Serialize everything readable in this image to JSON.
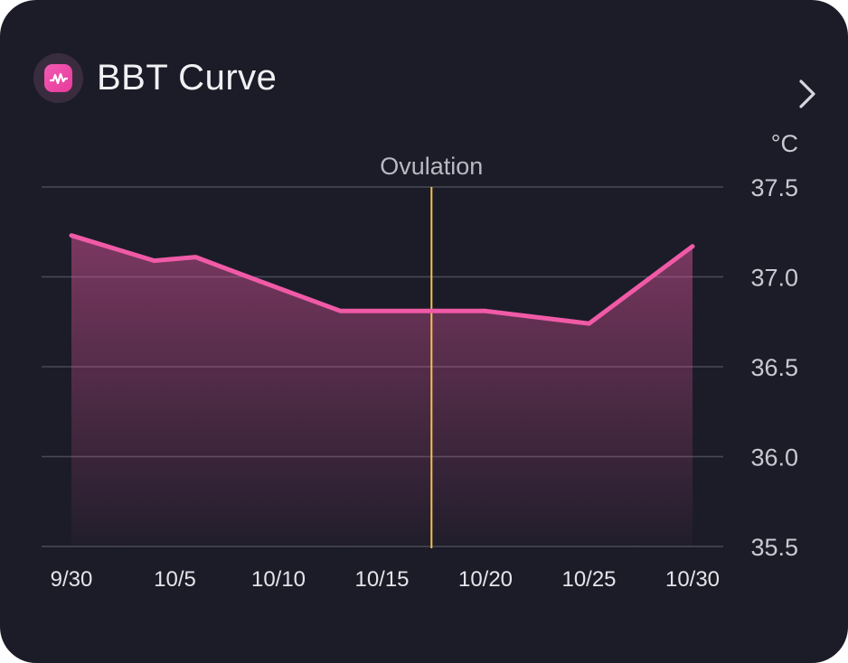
{
  "card": {
    "title": "BBT Curve",
    "icon": "wave-chart-icon",
    "more_icon": "chevron-right-icon"
  },
  "colors": {
    "background": "#1c1c28",
    "line": "#f05aa6",
    "ovulation": "#f2c14e",
    "grid": "#4a4a56",
    "text": "#c9c9d2"
  },
  "chart_data": {
    "type": "area",
    "unit": "°C",
    "x_tick_labels": [
      "9/30",
      "10/5",
      "10/10",
      "10/15",
      "10/20",
      "10/25",
      "10/30"
    ],
    "y_tick_labels": [
      "37.5",
      "37.0",
      "36.5",
      "36.0",
      "35.5"
    ],
    "ylim": [
      35.5,
      37.5
    ],
    "xlim_days_from": "9/30",
    "grid": "horizontal",
    "series": [
      {
        "x": [
          "9/30",
          "10/4",
          "10/6",
          "10/9",
          "10/13",
          "10/17",
          "10/20",
          "10/25",
          "10/30"
        ],
        "values": [
          37.23,
          37.09,
          37.11,
          36.98,
          36.81,
          36.81,
          36.81,
          36.74,
          37.17
        ]
      }
    ],
    "annotation": {
      "label": "Ovulation",
      "x": "10/17"
    }
  }
}
